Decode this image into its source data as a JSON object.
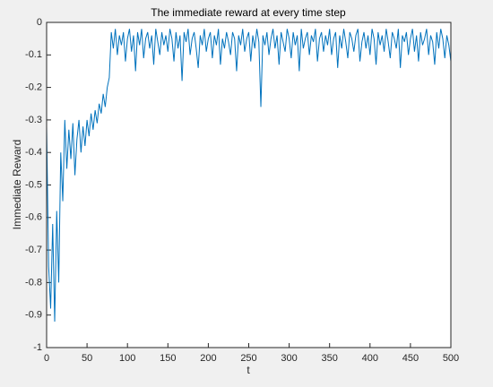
{
  "chart_data": {
    "type": "line",
    "title": "The immediate reward at every time step",
    "xlabel": "t",
    "ylabel": "Immediate Reward",
    "color": "#0072bd",
    "grid": false,
    "xlim": [
      0,
      500
    ],
    "xticks": [
      0,
      50,
      100,
      150,
      200,
      250,
      300,
      350,
      400,
      450,
      500
    ],
    "ylim": [
      -1,
      0
    ],
    "yticks": [
      -1,
      -0.9,
      -0.8,
      -0.7,
      -0.6,
      -0.5,
      -0.4,
      -0.3,
      -0.2,
      -0.1,
      0
    ],
    "x": [
      0,
      2.5,
      5,
      7.5,
      10,
      12.5,
      15,
      17.5,
      20,
      22.5,
      25,
      27.5,
      30,
      32.5,
      35,
      37.5,
      40,
      42.5,
      45,
      47.5,
      50,
      52.5,
      55,
      57.5,
      60,
      62.5,
      65,
      67.5,
      70,
      72.5,
      75,
      77.5,
      80,
      82.5,
      85,
      87.5,
      90,
      92.5,
      95,
      97.5,
      100,
      102.5,
      105,
      107.5,
      110,
      112.5,
      115,
      117.5,
      120,
      122.5,
      125,
      127.5,
      130,
      132.5,
      135,
      137.5,
      140,
      142.5,
      145,
      147.5,
      150,
      152.5,
      155,
      157.5,
      160,
      162.5,
      165,
      167.5,
      170,
      172.5,
      175,
      177.5,
      180,
      182.5,
      185,
      187.5,
      190,
      192.5,
      195,
      197.5,
      200,
      202.5,
      205,
      207.5,
      210,
      212.5,
      215,
      217.5,
      220,
      222.5,
      225,
      227.5,
      230,
      232.5,
      235,
      237.5,
      240,
      242.5,
      245,
      247.5,
      250,
      252.5,
      255,
      257.5,
      260,
      262.5,
      265,
      267.5,
      270,
      272.5,
      275,
      277.5,
      280,
      282.5,
      285,
      287.5,
      290,
      292.5,
      295,
      297.5,
      300,
      302.5,
      305,
      307.5,
      310,
      312.5,
      315,
      317.5,
      320,
      322.5,
      325,
      327.5,
      330,
      332.5,
      335,
      337.5,
      340,
      342.5,
      345,
      347.5,
      350,
      352.5,
      355,
      357.5,
      360,
      362.5,
      365,
      367.5,
      370,
      372.5,
      375,
      377.5,
      380,
      382.5,
      385,
      387.5,
      390,
      392.5,
      395,
      397.5,
      400,
      402.5,
      405,
      407.5,
      410,
      412.5,
      415,
      417.5,
      420,
      422.5,
      425,
      427.5,
      430,
      432.5,
      435,
      437.5,
      440,
      442.5,
      445,
      447.5,
      450,
      452.5,
      455,
      457.5,
      460,
      462.5,
      465,
      467.5,
      470,
      472.5,
      475,
      477.5,
      480,
      482.5,
      485,
      487.5,
      490,
      492.5,
      495,
      497.5,
      500
    ],
    "values": [
      -0.32,
      -0.75,
      -0.88,
      -0.62,
      -0.92,
      -0.58,
      -0.8,
      -0.4,
      -0.55,
      -0.3,
      -0.45,
      -0.33,
      -0.42,
      -0.31,
      -0.47,
      -0.36,
      -0.3,
      -0.4,
      -0.32,
      -0.38,
      -0.3,
      -0.35,
      -0.28,
      -0.33,
      -0.27,
      -0.31,
      -0.25,
      -0.28,
      -0.22,
      -0.26,
      -0.2,
      -0.17,
      -0.03,
      -0.08,
      -0.02,
      -0.1,
      -0.04,
      -0.07,
      -0.03,
      -0.12,
      -0.05,
      -0.02,
      -0.09,
      -0.04,
      -0.15,
      -0.03,
      -0.07,
      -0.02,
      -0.11,
      -0.05,
      -0.03,
      -0.08,
      -0.04,
      -0.13,
      -0.02,
      -0.06,
      -0.1,
      -0.03,
      -0.07,
      -0.04,
      -0.09,
      -0.02,
      -0.05,
      -0.12,
      -0.03,
      -0.08,
      -0.04,
      -0.18,
      -0.03,
      -0.06,
      -0.02,
      -0.1,
      -0.05,
      -0.03,
      -0.08,
      -0.14,
      -0.04,
      -0.07,
      -0.02,
      -0.09,
      -0.05,
      -0.03,
      -0.11,
      -0.04,
      -0.07,
      -0.02,
      -0.13,
      -0.05,
      -0.08,
      -0.03,
      -0.06,
      -0.1,
      -0.03,
      -0.05,
      -0.15,
      -0.04,
      -0.07,
      -0.02,
      -0.09,
      -0.05,
      -0.03,
      -0.12,
      -0.04,
      -0.08,
      -0.02,
      -0.06,
      -0.26,
      -0.04,
      -0.07,
      -0.03,
      -0.1,
      -0.05,
      -0.02,
      -0.08,
      -0.04,
      -0.13,
      -0.03,
      -0.06,
      -0.09,
      -0.02,
      -0.05,
      -0.11,
      -0.03,
      -0.07,
      -0.04,
      -0.15,
      -0.02,
      -0.08,
      -0.05,
      -0.03,
      -0.1,
      -0.04,
      -0.06,
      -0.02,
      -0.12,
      -0.05,
      -0.03,
      -0.09,
      -0.04,
      -0.07,
      -0.02,
      -0.1,
      -0.05,
      -0.03,
      -0.14,
      -0.04,
      -0.08,
      -0.02,
      -0.06,
      -0.11,
      -0.03,
      -0.05,
      -0.09,
      -0.04,
      -0.02,
      -0.12,
      -0.06,
      -0.03,
      -0.08,
      -0.04,
      -0.1,
      -0.02,
      -0.05,
      -0.13,
      -0.03,
      -0.07,
      -0.04,
      -0.09,
      -0.02,
      -0.06,
      -0.11,
      -0.03,
      -0.05,
      -0.08,
      -0.02,
      -0.14,
      -0.04,
      -0.06,
      -0.03,
      -0.1,
      -0.05,
      -0.02,
      -0.09,
      -0.04,
      -0.12,
      -0.03,
      -0.07,
      -0.05,
      -0.02,
      -0.1,
      -0.04,
      -0.06,
      -0.13,
      -0.03,
      -0.08,
      -0.02,
      -0.05,
      -0.11,
      -0.04,
      -0.07,
      -0.12
    ]
  }
}
